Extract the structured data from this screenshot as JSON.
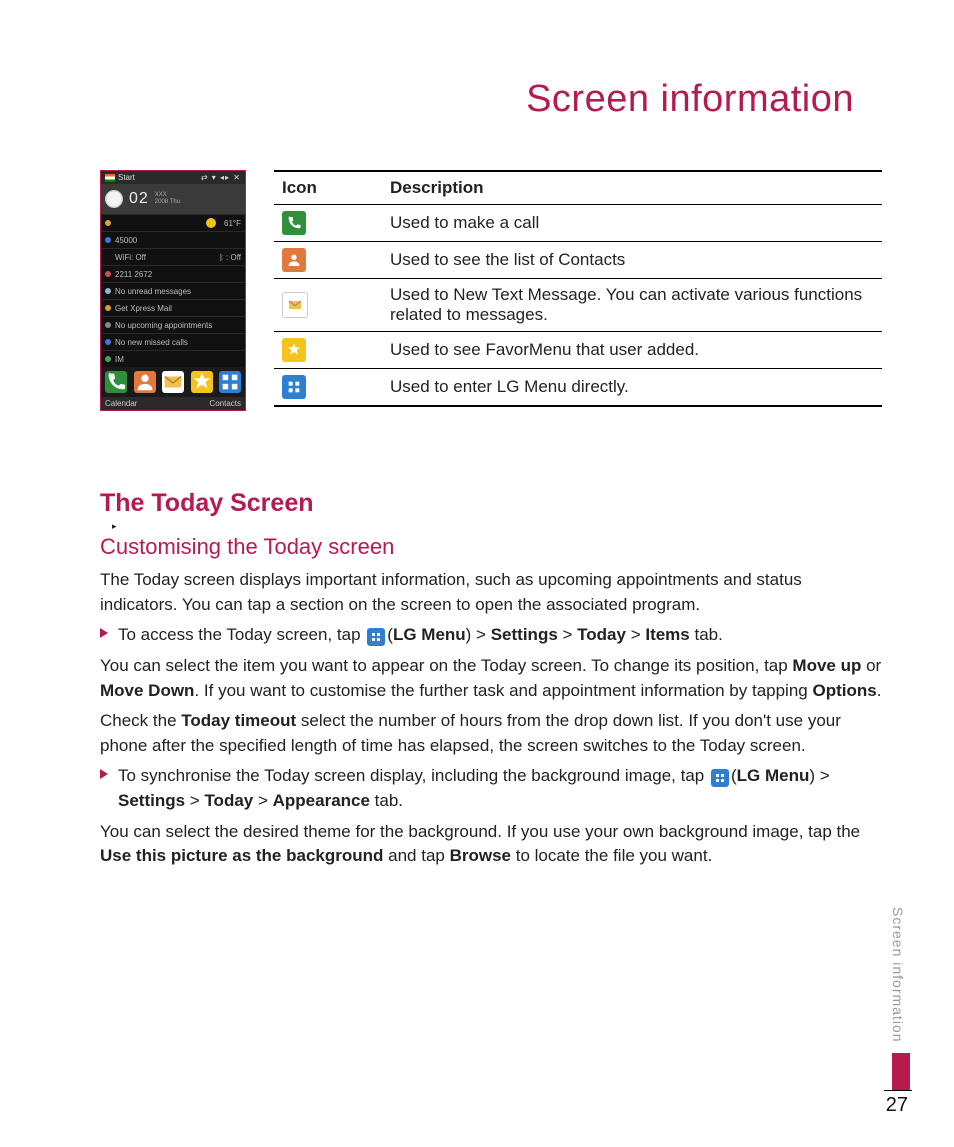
{
  "colors": {
    "accent": "#b61b4e",
    "text": "#222222",
    "muted": "#999999",
    "rule": "#000000"
  },
  "page_title": "Screen information",
  "side_tab": "Screen information",
  "page_number": "27",
  "phone": {
    "top_left": "Start",
    "clock_digits": "02",
    "clock_suffix_top": "XXX",
    "clock_suffix_bot": "2008 Thu",
    "temp": "61°F",
    "line_45000": "45000",
    "line_wifi": "WiFi: Off",
    "line_off_right": "Off",
    "line_2211": "2211 2672",
    "line_unread": "No unread messages",
    "line_xpress": "Get Xpress Mail",
    "line_appt": "No upcoming appointments",
    "line_missed": "No new missed calls",
    "line_im": "IM",
    "bottom_left": "Calendar",
    "bottom_right": "Contacts",
    "row_icon_colors": {
      "lock": "#d0a641",
      "msg": "#8bb6d6",
      "phone_blue": "#3a7bd5",
      "im": "#45a36a"
    }
  },
  "icon_table": {
    "headers": {
      "icon": "Icon",
      "desc": "Description"
    },
    "rows": [
      {
        "name": "call-icon",
        "bg": "#2f8f3a",
        "glyph": "phone",
        "desc": "Used to make a call"
      },
      {
        "name": "contacts-icon",
        "bg": "#e07a3c",
        "glyph": "contacts",
        "desc": "Used to see the list of Contacts"
      },
      {
        "name": "message-icon",
        "bg": "#ffffff",
        "glyph": "envelope",
        "desc": "Used to New Text Message. You can activate various functions related to messages."
      },
      {
        "name": "favor-icon",
        "bg": "#f6c21c",
        "glyph": "star",
        "desc": "Used to see FavorMenu that user added."
      },
      {
        "name": "lgmenu-icon",
        "bg": "#2f7fd1",
        "glyph": "grid",
        "desc": "Used to enter LG Menu directly."
      }
    ]
  },
  "inline_icon": {
    "bg": "#2f7fd1"
  },
  "headings": {
    "today": "The Today Screen",
    "customising": "Customising the Today screen",
    "small_arrow": "▸"
  },
  "body": {
    "p1": "The Today screen displays important information, such as upcoming appointments and status indicators. You can tap a section on the screen to open the associated program.",
    "b1_pre": "To access the Today screen, tap ",
    "b1_lgmenu_open": "(",
    "b1_lgmenu": "LG Menu",
    "b1_lgmenu_close": ") > ",
    "b1_settings": "Settings",
    "b1_gt1": " > ",
    "b1_today": "Today",
    "b1_gt2": " > ",
    "b1_items": "Items",
    "b1_tail": " tab.",
    "p2_pre": "You can select the item you want to appear on the Today screen. To change its position, tap ",
    "p2_moveup": "Move up",
    "p2_mid": " or ",
    "p2_movedown": "Move Down",
    "p2_mid2": ". If you want to customise the further task and appointment information by tapping ",
    "p2_options": "Options",
    "p2_tail": ".",
    "p3_pre": "Check the ",
    "p3_timeout": "Today timeout",
    "p3_tail": " select the number of hours from the drop down list. If you don't use your phone after the specified length of time has elapsed, the screen switches to the Today screen.",
    "b2_pre": "To synchronise the Today screen display, including the background image, tap ",
    "b2_lgmenu_open": "(",
    "b2_lgmenu": "LG Menu",
    "b2_lgmenu_close": ") > ",
    "b2_settings": "Settings",
    "b2_gt1": " > ",
    "b2_today": "Today",
    "b2_gt2": " > ",
    "b2_appearance": "Appearance",
    "b2_tail": " tab.",
    "p4_pre": "You can select the desired theme for the background. If you use your own background image, tap the ",
    "p4_use": "Use this picture as the background",
    "p4_mid": " and tap ",
    "p4_browse": "Browse",
    "p4_tail": " to locate the file you want."
  }
}
